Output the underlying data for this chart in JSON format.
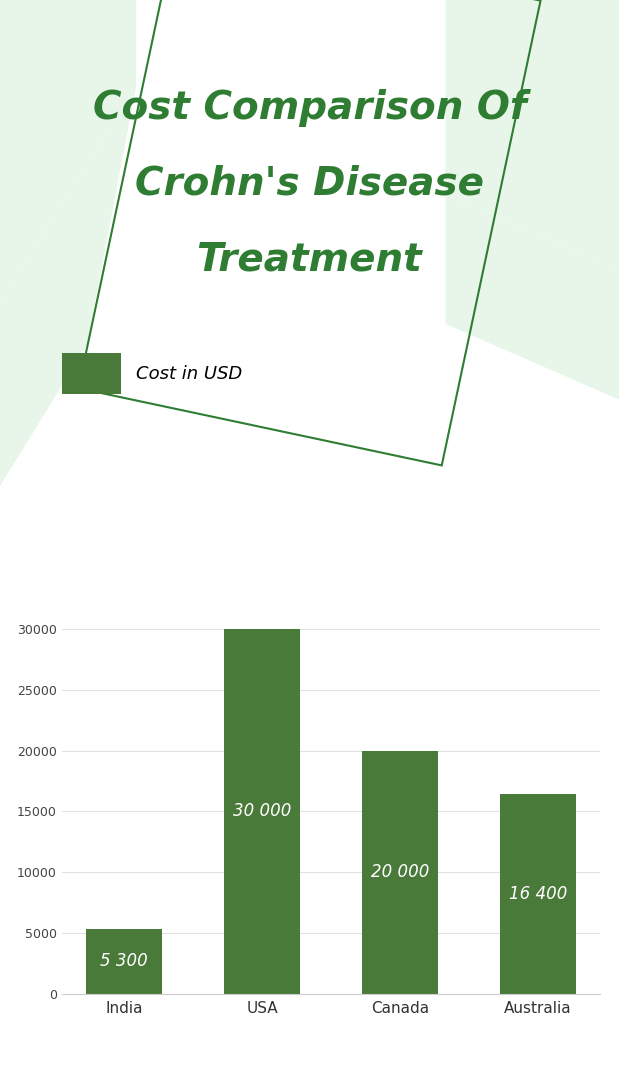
{
  "title_line1": "Cost Comparison Of",
  "title_line2": "Crohn's Disease",
  "title_line3": "Treatment",
  "title_color": "#2e7d32",
  "title_fontsize": 28,
  "title_style": "italic",
  "legend_label": "Cost in USD",
  "categories": [
    "India",
    "USA",
    "Canada",
    "Australia"
  ],
  "values": [
    5300,
    30000,
    20000,
    16400
  ],
  "bar_labels": [
    "5 300",
    "30 000",
    "20 000",
    "16 400"
  ],
  "bar_color": "#4a7a3a",
  "bar_label_color": "#ffffff",
  "bar_label_fontsize": 12,
  "background_color": "#ffffff",
  "ylim": [
    0,
    32000
  ],
  "yticks": [
    0,
    5000,
    10000,
    15000,
    20000,
    25000,
    30000
  ],
  "grid_color": "#e0e0e0",
  "legend_box_color": "#4a7a3a",
  "diamond_outline": "#2e7d32",
  "bg_shape_color": "#e8f5e9",
  "fig_width": 6.19,
  "fig_height": 10.8,
  "dpi": 100
}
